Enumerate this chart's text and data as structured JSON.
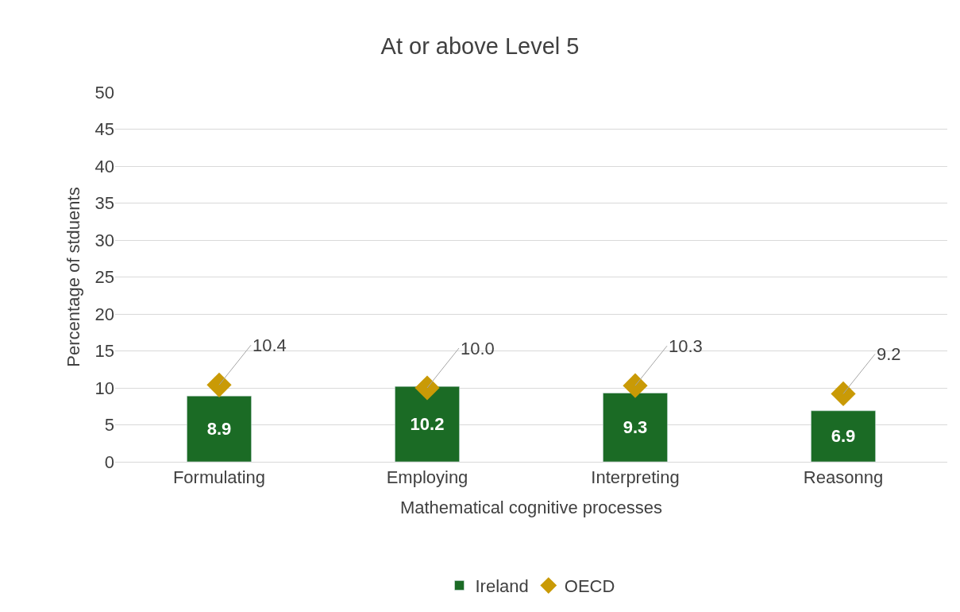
{
  "chart_data": {
    "type": "bar",
    "title": "At or above Level 5",
    "xlabel": "Mathematical cognitive processes",
    "ylabel": "Percentage of stduents",
    "categories": [
      "Formulating",
      "Employing",
      "Interpreting",
      "Reasonng"
    ],
    "series": [
      {
        "name": "Ireland",
        "color": "#1b6b25",
        "values": [
          8.9,
          10.2,
          9.3,
          6.9
        ],
        "value_labels": [
          "8.9",
          "10.2",
          "9.3",
          "6.9"
        ]
      },
      {
        "name": "OECD",
        "type": "scatter",
        "marker": "diamond",
        "color": "#c99a06",
        "values": [
          10.4,
          10.0,
          10.3,
          9.2
        ],
        "value_labels": [
          "10.4",
          "10.0",
          "10.3",
          "9.2"
        ]
      }
    ],
    "ylim": [
      0,
      50
    ],
    "yticks": [
      0,
      5,
      10,
      15,
      20,
      25,
      30,
      35,
      40,
      45,
      50
    ],
    "grid": "y",
    "legend": "bottom"
  }
}
